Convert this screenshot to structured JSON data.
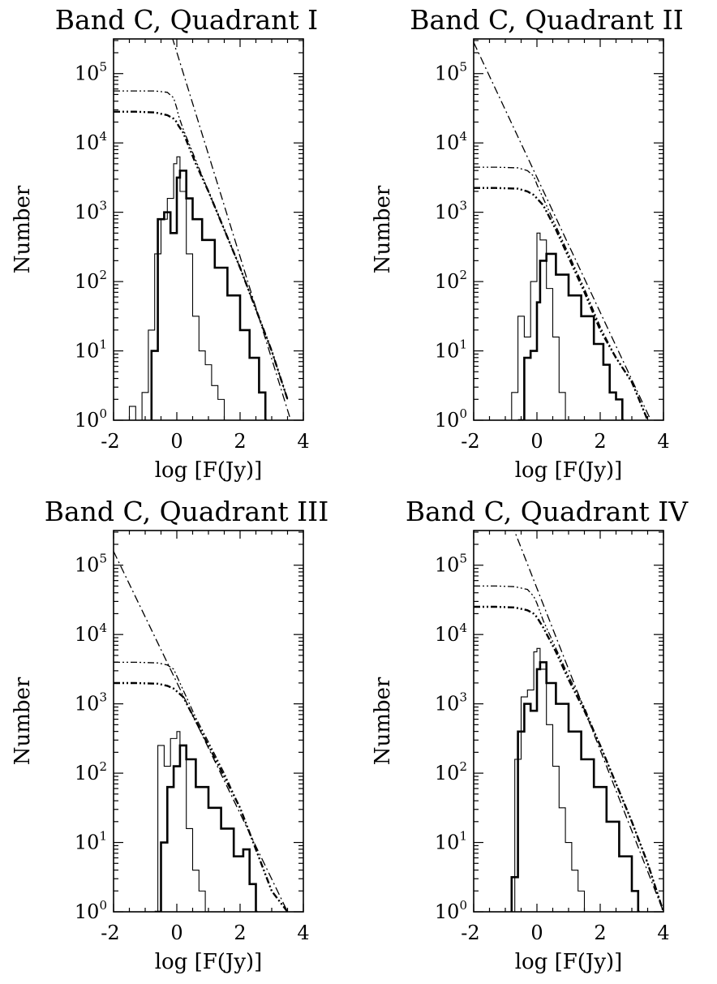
{
  "figure": {
    "panels_layout": "2x2 grid",
    "fit_line_note": "dash-dot-dot lines"
  },
  "chart_data": [
    {
      "type": "line",
      "title": "Band C, Quadrant I",
      "xlabel": "log [F(Jy)]",
      "ylabel": "Number",
      "xlim": [
        -2,
        4
      ],
      "ylim": [
        0,
        5.5
      ],
      "y_scale": "log10",
      "x_ticks": [
        "-2",
        "0",
        "2",
        "4"
      ],
      "y_ticks": [
        {
          "base": "10",
          "exp": "0"
        },
        {
          "base": "10",
          "exp": "1"
        },
        {
          "base": "10",
          "exp": "2"
        },
        {
          "base": "10",
          "exp": "3"
        },
        {
          "base": "10",
          "exp": "4"
        },
        {
          "base": "10",
          "exp": "5"
        }
      ],
      "series": [
        {
          "style": "dash-dot-dot-thin",
          "x": [
            -2.0,
            -1.3,
            -0.7,
            -0.3,
            -0.1,
            0.0,
            0.05,
            0.2,
            0.6,
            1.0,
            1.5,
            2.0,
            2.5,
            3.0,
            3.5
          ],
          "y": [
            4.75,
            4.75,
            4.75,
            4.73,
            4.65,
            4.5,
            4.4,
            4.2,
            3.75,
            3.3,
            2.75,
            2.2,
            1.6,
            1.0,
            0.3
          ]
        },
        {
          "style": "dash-dot-dot-thick",
          "x": [
            -2.0,
            -1.3,
            -0.7,
            -0.3,
            -0.1,
            0.0,
            0.05,
            0.2,
            0.6,
            1.0,
            1.5,
            2.0,
            2.5,
            3.0,
            3.5
          ],
          "y": [
            4.45,
            4.45,
            4.44,
            4.4,
            4.35,
            4.3,
            4.25,
            4.15,
            3.7,
            3.3,
            2.75,
            2.2,
            1.6,
            1.0,
            0.3
          ]
        },
        {
          "style": "dash-dot-fit",
          "x": [
            -0.3,
            3.6
          ],
          "y": [
            5.75,
            0.0
          ]
        },
        {
          "style": "histogram-thin",
          "x": [
            -1.5,
            -1.3,
            -1.1,
            -0.9,
            -0.7,
            -0.5,
            -0.3,
            -0.1,
            0.0,
            0.1,
            0.3,
            0.5,
            0.7,
            0.9,
            1.1,
            1.3,
            1.5
          ],
          "y": [
            0.2,
            0.0,
            0.4,
            1.3,
            2.4,
            2.9,
            3.2,
            3.7,
            3.8,
            3.3,
            2.4,
            1.5,
            1.0,
            0.8,
            0.5,
            0.3,
            0.0
          ]
        },
        {
          "style": "histogram-thick",
          "x": [
            -0.8,
            -0.6,
            -0.4,
            -0.2,
            0.0,
            0.1,
            0.3,
            0.5,
            0.8,
            1.2,
            1.6,
            2.0,
            2.3,
            2.6,
            2.8
          ],
          "y": [
            1.0,
            2.9,
            3.0,
            2.7,
            3.5,
            3.6,
            3.2,
            2.9,
            2.6,
            2.2,
            1.8,
            1.3,
            0.9,
            0.4,
            0.0
          ]
        }
      ]
    },
    {
      "type": "line",
      "title": "Band C, Quadrant II",
      "xlabel": "log [F(Jy)]",
      "ylabel": "Number",
      "xlim": [
        -2,
        4
      ],
      "ylim": [
        0,
        5.5
      ],
      "y_scale": "log10",
      "x_ticks": [
        "-2",
        "0",
        "2",
        "4"
      ],
      "y_ticks": [
        {
          "base": "10",
          "exp": "0"
        },
        {
          "base": "10",
          "exp": "1"
        },
        {
          "base": "10",
          "exp": "2"
        },
        {
          "base": "10",
          "exp": "3"
        },
        {
          "base": "10",
          "exp": "4"
        },
        {
          "base": "10",
          "exp": "5"
        }
      ],
      "series": [
        {
          "style": "dash-dot-dot-thin",
          "x": [
            -2.0,
            -1.3,
            -0.6,
            -0.3,
            -0.1,
            0.0,
            0.2,
            0.6,
            1.0,
            1.5,
            2.0,
            2.5,
            3.0,
            3.5
          ],
          "y": [
            3.65,
            3.65,
            3.64,
            3.6,
            3.52,
            3.4,
            3.2,
            2.8,
            2.4,
            1.9,
            1.35,
            0.9,
            0.55,
            0.0
          ]
        },
        {
          "style": "dash-dot-dot-thick",
          "x": [
            -2.0,
            -1.3,
            -0.6,
            -0.3,
            -0.1,
            0.0,
            0.2,
            0.6,
            1.0,
            1.5,
            2.0,
            2.5,
            3.0,
            3.5
          ],
          "y": [
            3.35,
            3.35,
            3.34,
            3.3,
            3.25,
            3.2,
            3.1,
            2.75,
            2.35,
            1.85,
            1.3,
            0.9,
            0.55,
            0.0
          ]
        },
        {
          "style": "dash-dot-fit",
          "x": [
            -2.0,
            3.6
          ],
          "y": [
            5.45,
            0.0
          ]
        },
        {
          "style": "histogram-thin",
          "x": [
            -0.8,
            -0.6,
            -0.4,
            -0.2,
            0.0,
            0.1,
            0.3,
            0.5,
            0.7,
            0.9
          ],
          "y": [
            0.4,
            1.5,
            1.2,
            2.0,
            2.7,
            2.6,
            1.9,
            1.2,
            0.4,
            0.0
          ]
        },
        {
          "style": "histogram-thick",
          "x": [
            -0.6,
            -0.4,
            -0.2,
            0.0,
            0.1,
            0.3,
            0.6,
            1.0,
            1.4,
            1.8,
            2.1,
            2.3,
            2.5,
            2.7
          ],
          "y": [
            0.0,
            0.9,
            1.0,
            1.7,
            2.3,
            2.4,
            2.1,
            1.8,
            1.5,
            1.1,
            0.8,
            0.4,
            0.3,
            0.0
          ]
        }
      ]
    },
    {
      "type": "line",
      "title": "Band C, Quadrant III",
      "xlabel": "log [F(Jy)]",
      "ylabel": "Number",
      "xlim": [
        -2,
        4
      ],
      "ylim": [
        0,
        5.5
      ],
      "y_scale": "log10",
      "x_ticks": [
        "-2",
        "0",
        "2",
        "4"
      ],
      "y_ticks": [
        {
          "base": "10",
          "exp": "0"
        },
        {
          "base": "10",
          "exp": "1"
        },
        {
          "base": "10",
          "exp": "2"
        },
        {
          "base": "10",
          "exp": "3"
        },
        {
          "base": "10",
          "exp": "4"
        },
        {
          "base": "10",
          "exp": "5"
        }
      ],
      "series": [
        {
          "style": "dash-dot-dot-thin",
          "x": [
            -2.0,
            -1.3,
            -0.6,
            -0.3,
            -0.1,
            0.0,
            0.2,
            0.6,
            1.0,
            1.5,
            2.0,
            2.5,
            3.0,
            3.5
          ],
          "y": [
            3.6,
            3.6,
            3.59,
            3.56,
            3.5,
            3.4,
            3.2,
            2.8,
            2.45,
            2.0,
            1.5,
            0.9,
            0.3,
            0.0
          ]
        },
        {
          "style": "dash-dot-dot-thick",
          "x": [
            -2.0,
            -1.3,
            -0.6,
            -0.3,
            -0.1,
            0.0,
            0.2,
            0.6,
            1.0,
            1.5,
            2.0,
            2.5,
            3.0,
            3.5
          ],
          "y": [
            3.3,
            3.3,
            3.29,
            3.26,
            3.22,
            3.18,
            3.1,
            2.75,
            2.4,
            1.95,
            1.5,
            0.9,
            0.3,
            0.0
          ]
        },
        {
          "style": "dash-dot-fit",
          "x": [
            -2.0,
            3.5
          ],
          "y": [
            5.2,
            0.0
          ]
        },
        {
          "style": "histogram-thin",
          "x": [
            -0.8,
            -0.6,
            -0.4,
            -0.2,
            0.0,
            0.1,
            0.3,
            0.5,
            0.7,
            0.9
          ],
          "y": [
            0.0,
            2.4,
            2.1,
            2.5,
            2.6,
            2.4,
            1.2,
            0.6,
            0.3,
            0.0
          ]
        },
        {
          "style": "histogram-thick",
          "x": [
            -0.7,
            -0.5,
            -0.3,
            -0.1,
            0.1,
            0.3,
            0.6,
            1.0,
            1.4,
            1.8,
            2.1,
            2.3,
            2.5
          ],
          "y": [
            0.0,
            1.0,
            1.8,
            2.1,
            2.4,
            2.2,
            1.8,
            1.5,
            1.2,
            0.8,
            0.9,
            0.4,
            0.0
          ]
        }
      ]
    },
    {
      "type": "line",
      "title": "Band C, Quadrant IV",
      "xlabel": "log [F(Jy)]",
      "ylabel": "Number",
      "xlim": [
        -2,
        4
      ],
      "ylim": [
        0,
        5.5
      ],
      "y_scale": "log10",
      "x_ticks": [
        "-2",
        "0",
        "2",
        "4"
      ],
      "y_ticks": [
        {
          "base": "10",
          "exp": "0"
        },
        {
          "base": "10",
          "exp": "1"
        },
        {
          "base": "10",
          "exp": "2"
        },
        {
          "base": "10",
          "exp": "3"
        },
        {
          "base": "10",
          "exp": "4"
        },
        {
          "base": "10",
          "exp": "5"
        }
      ],
      "series": [
        {
          "style": "dash-dot-dot-thin",
          "x": [
            -2.0,
            -1.3,
            -0.7,
            -0.3,
            -0.1,
            0.0,
            0.2,
            0.6,
            1.0,
            1.5,
            2.0,
            2.5,
            3.0,
            3.5,
            4.0
          ],
          "y": [
            4.7,
            4.7,
            4.69,
            4.65,
            4.55,
            4.45,
            4.2,
            3.8,
            3.4,
            2.95,
            2.4,
            1.85,
            1.3,
            0.7,
            0.0
          ]
        },
        {
          "style": "dash-dot-dot-thick",
          "x": [
            -2.0,
            -1.3,
            -0.7,
            -0.3,
            -0.1,
            0.0,
            0.2,
            0.6,
            1.0,
            1.5,
            2.0,
            2.5,
            3.0,
            3.5,
            4.0
          ],
          "y": [
            4.4,
            4.4,
            4.39,
            4.35,
            4.3,
            4.25,
            4.1,
            3.75,
            3.35,
            2.9,
            2.4,
            1.85,
            1.3,
            0.7,
            0.0
          ]
        },
        {
          "style": "dash-dot-fit",
          "x": [
            -0.8,
            4.0
          ],
          "y": [
            5.6,
            0.0
          ]
        },
        {
          "style": "histogram-thin",
          "x": [
            -0.9,
            -0.7,
            -0.5,
            -0.3,
            -0.1,
            0.0,
            0.1,
            0.3,
            0.5,
            0.7,
            0.9,
            1.1,
            1.3,
            1.5
          ],
          "y": [
            0.0,
            2.2,
            3.1,
            3.2,
            3.75,
            3.8,
            3.5,
            2.7,
            2.1,
            1.5,
            1.0,
            0.6,
            0.3,
            0.0
          ]
        },
        {
          "style": "histogram-thick",
          "x": [
            -0.8,
            -0.6,
            -0.4,
            -0.2,
            0.0,
            0.1,
            0.3,
            0.6,
            1.0,
            1.4,
            1.8,
            2.2,
            2.6,
            3.0,
            3.2
          ],
          "y": [
            0.5,
            2.6,
            3.0,
            2.9,
            3.5,
            3.6,
            3.3,
            3.0,
            2.6,
            2.2,
            1.8,
            1.3,
            0.8,
            0.3,
            0.0
          ]
        }
      ]
    }
  ]
}
